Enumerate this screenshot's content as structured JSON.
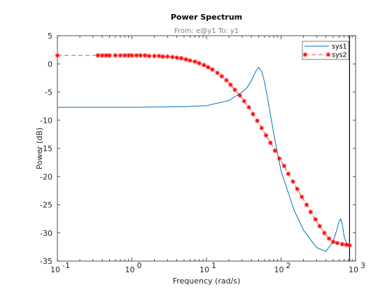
{
  "chart_data": {
    "type": "line",
    "title": "Power Spectrum",
    "subtitle": "From: e@y1  To: y1",
    "xlabel": "Frequency  (rad/s)",
    "ylabel": "Power (dB)",
    "xscale": "log",
    "xlim": [
      0.1,
      1000
    ],
    "ylim": [
      -35,
      5
    ],
    "x_ticks": [
      {
        "value": 0.1,
        "base": "10",
        "exp": "-1"
      },
      {
        "value": 1,
        "base": "10",
        "exp": "0"
      },
      {
        "value": 10,
        "base": "10",
        "exp": "1"
      },
      {
        "value": 100,
        "base": "10",
        "exp": "2"
      },
      {
        "value": 1000,
        "base": "10",
        "exp": "3"
      }
    ],
    "y_ticks": [
      5,
      0,
      -5,
      -10,
      -15,
      -20,
      -25,
      -30,
      -35
    ],
    "grid": false,
    "legend_position": "top-right",
    "nyquist_line_x": 830,
    "series": [
      {
        "name": "sys1",
        "color": "#0072BD",
        "style": "solid",
        "x": [
          0.1,
          1,
          5,
          10,
          20,
          30,
          35,
          40,
          45,
          50,
          55,
          60,
          70,
          80,
          100,
          150,
          200,
          300,
          400,
          500,
          550,
          600,
          630,
          660,
          700,
          750,
          800,
          830
        ],
        "y": [
          -7.7,
          -7.7,
          -7.6,
          -7.4,
          -6.5,
          -5.0,
          -4.2,
          -3.0,
          -1.5,
          -0.6,
          -1.3,
          -3.2,
          -8.0,
          -12.5,
          -19.0,
          -26.0,
          -29.5,
          -32.6,
          -33.3,
          -31.5,
          -29.8,
          -28.0,
          -27.5,
          -28.3,
          -30.5,
          -31.8,
          -32.2,
          -32.3
        ]
      },
      {
        "name": "sys2",
        "color": "#D95319",
        "style": "dashed",
        "marker": "*",
        "marker_color": "#FF0000",
        "x": [
          0.1,
          0.35,
          0.4,
          0.45,
          0.5,
          0.6,
          0.7,
          0.8,
          0.9,
          1.0,
          1.15,
          1.3,
          1.5,
          1.7,
          2.0,
          2.3,
          2.6,
          3.0,
          3.5,
          4.0,
          4.6,
          5.3,
          6.0,
          7.0,
          8.0,
          9.2,
          10.5,
          12,
          14,
          16,
          18.5,
          21,
          24,
          28,
          32,
          37,
          42,
          48,
          55,
          63,
          72,
          83,
          95,
          110,
          125,
          145,
          165,
          190,
          220,
          250,
          290,
          330,
          380,
          440,
          500,
          570,
          660,
          750,
          830
        ],
        "y": [
          1.5,
          1.5,
          1.5,
          1.5,
          1.5,
          1.5,
          1.5,
          1.5,
          1.5,
          1.5,
          1.5,
          1.5,
          1.5,
          1.4,
          1.4,
          1.4,
          1.3,
          1.3,
          1.2,
          1.1,
          1.0,
          0.8,
          0.6,
          0.4,
          0.1,
          -0.2,
          -0.6,
          -1.0,
          -1.6,
          -2.2,
          -2.9,
          -3.7,
          -4.6,
          -5.6,
          -6.6,
          -7.7,
          -8.9,
          -10.1,
          -11.4,
          -12.7,
          -14.0,
          -15.4,
          -16.8,
          -18.1,
          -19.5,
          -20.9,
          -22.2,
          -23.6,
          -25.0,
          -26.3,
          -27.6,
          -28.8,
          -30.0,
          -31.0,
          -31.6,
          -31.8,
          -32.0,
          -32.1,
          -32.2
        ]
      }
    ]
  }
}
